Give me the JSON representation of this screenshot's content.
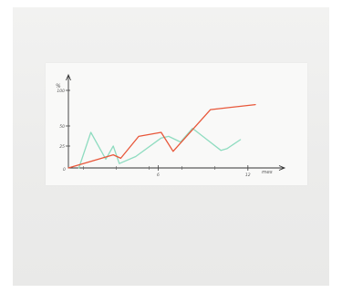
{
  "chart_data": {
    "type": "line",
    "ylabel": "%",
    "xlabel": "mes",
    "x_ticks": [
      {
        "value": 6,
        "label": "6"
      },
      {
        "value": 12,
        "label": "12"
      }
    ],
    "y_ticks": [
      {
        "value": 25,
        "label": "25"
      },
      {
        "value": 50,
        "label": "50"
      },
      {
        "value": 100,
        "label": "100"
      }
    ],
    "xlim": [
      0,
      12
    ],
    "ylim": [
      0,
      100
    ],
    "series": [
      {
        "color": "#e8573a",
        "x": [
          0,
          3,
          3.5,
          4.7,
          6.2,
          7,
          9.5,
          12.5
        ],
        "y": [
          0,
          15,
          11,
          37,
          42,
          19,
          73,
          80
        ]
      },
      {
        "color": "#8fdcc0",
        "x": [
          0.7,
          1.5,
          2.5,
          3,
          3.4,
          4.5,
          6.2,
          6.7,
          7.5,
          8.3,
          9.2,
          10.2,
          10.6,
          11.5
        ],
        "y": [
          0,
          42,
          10,
          25,
          5,
          13,
          35,
          37,
          30,
          47,
          34,
          20,
          22,
          33
        ]
      }
    ],
    "grid": false,
    "legend": "none"
  }
}
